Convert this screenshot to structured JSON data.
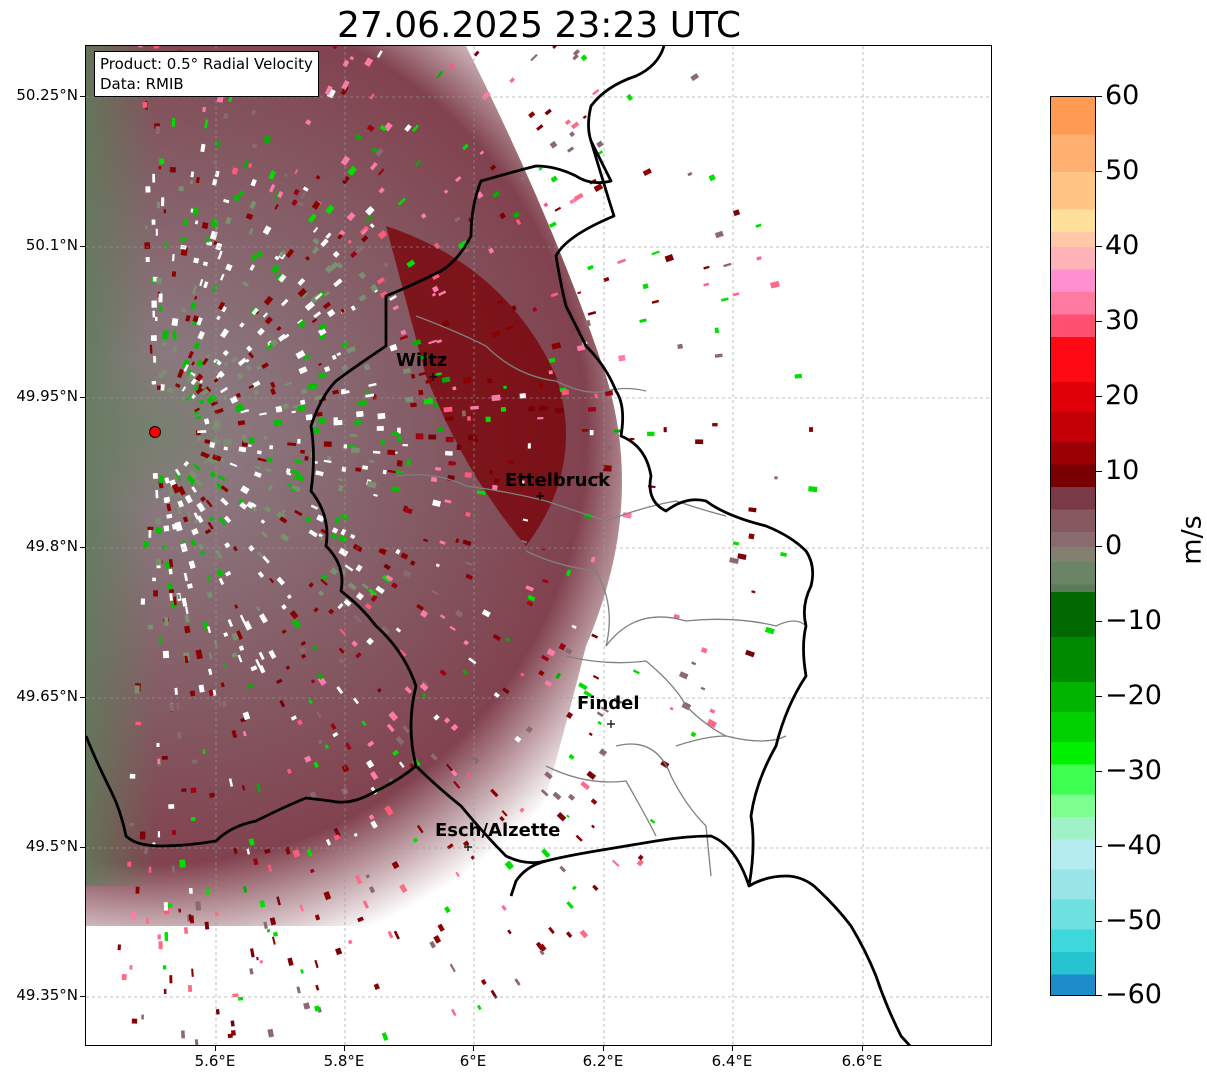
{
  "title": "27.06.2025 23:23 UTC",
  "info_box": {
    "product": "Product: 0.5° Radial Velocity",
    "source": "Data: RMIB"
  },
  "axes": {
    "lat_labels": [
      "50.25°N",
      "50.1°N",
      "49.95°N",
      "49.8°N",
      "49.65°N",
      "49.5°N",
      "49.35°N"
    ],
    "lon_labels": [
      "5.6°E",
      "5.8°E",
      "6°E",
      "6.2°E",
      "6.4°E",
      "6.6°E"
    ],
    "gridlines": true
  },
  "places": [
    {
      "name": "Wiltz"
    },
    {
      "name": "Ettelbruck"
    },
    {
      "name": "Findel"
    },
    {
      "name": "Esch/Alzette"
    }
  ],
  "radar_marker": {
    "color": "#ff0000"
  },
  "colorbar": {
    "unit": "m/s",
    "min": -60,
    "max": 60,
    "tick_labels": [
      "60",
      "50",
      "40",
      "30",
      "20",
      "10",
      "0",
      "−10",
      "−20",
      "−30",
      "−40",
      "−50",
      "−60"
    ]
  },
  "colors": {
    "inbound_strong": "#00e000",
    "outbound_strong": "#8b0000",
    "near_zero": "#7a5a62",
    "border_national": "#000000",
    "border_canton": "#808080"
  }
}
